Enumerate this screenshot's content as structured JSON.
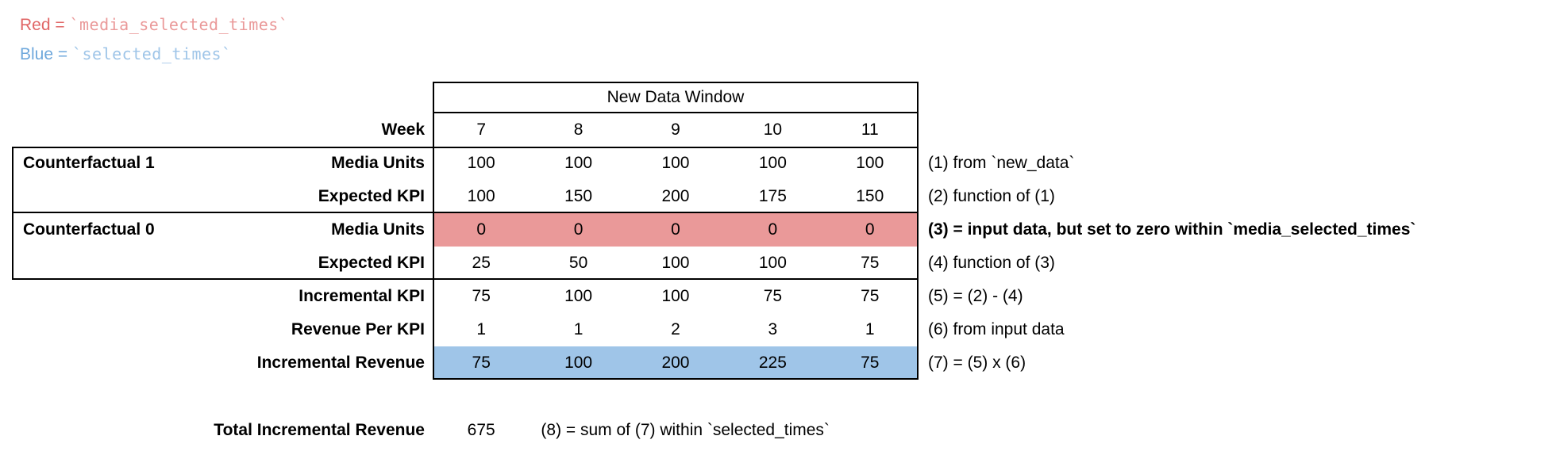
{
  "legend": {
    "red": {
      "label": "Red = ",
      "code": "`media_selected_times`"
    },
    "blue": {
      "label": "Blue = ",
      "code": "`selected_times`"
    }
  },
  "table": {
    "header": "New Data Window",
    "week_label": "Week",
    "weeks": [
      "7",
      "8",
      "9",
      "10",
      "11"
    ],
    "rows": [
      {
        "group": "Counterfactual 1",
        "label": "Media Units",
        "values": [
          "100",
          "100",
          "100",
          "100",
          "100"
        ],
        "note": "(1) from `new_data`",
        "highlight": "none"
      },
      {
        "group": "",
        "label": "Expected KPI",
        "values": [
          "100",
          "150",
          "200",
          "175",
          "150"
        ],
        "note": "(2) function of (1)",
        "highlight": "none"
      },
      {
        "group": "Counterfactual 0",
        "label": "Media Units",
        "values": [
          "0",
          "0",
          "0",
          "0",
          "0"
        ],
        "note": "(3) = input data, but set to zero within `media_selected_times`",
        "highlight": "red"
      },
      {
        "group": "",
        "label": "Expected KPI",
        "values": [
          "25",
          "50",
          "100",
          "100",
          "75"
        ],
        "note": "(4) function of (3)",
        "highlight": "none"
      },
      {
        "group": "",
        "label": "Incremental KPI",
        "values": [
          "75",
          "100",
          "100",
          "75",
          "75"
        ],
        "note": "(5) = (2) - (4)",
        "highlight": "none"
      },
      {
        "group": "",
        "label": "Revenue Per KPI",
        "values": [
          "1",
          "1",
          "2",
          "3",
          "1"
        ],
        "note": "(6) from input data",
        "highlight": "none"
      },
      {
        "group": "",
        "label": "Incremental Revenue",
        "values": [
          "75",
          "100",
          "200",
          "225",
          "75"
        ],
        "note": "(7) = (5) x (6)",
        "highlight": "blue"
      }
    ],
    "total": {
      "label": "Total Incremental Revenue",
      "value": "675",
      "note": "(8) = sum of (7) within `selected_times`"
    }
  },
  "colors": {
    "red_text": "#e06666",
    "red_code": "#ea9999",
    "red_fill": "#ea9999",
    "blue_text": "#6fa8dc",
    "blue_code": "#9fc5e8",
    "blue_fill": "#9fc5e8"
  }
}
